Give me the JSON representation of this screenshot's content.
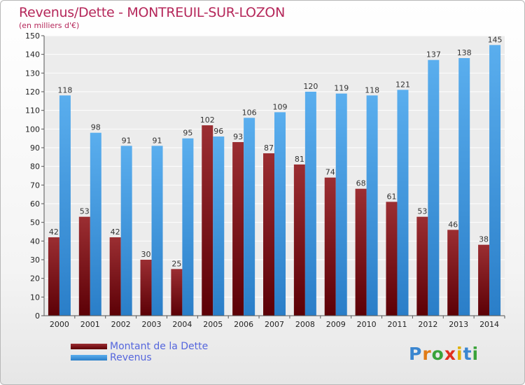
{
  "chart_data": {
    "type": "bar",
    "title": "Revenus/Dette - MONTREUIL-SUR-LOZON",
    "subtitle": "(en milliers d'€)",
    "categories": [
      "2000",
      "2001",
      "2002",
      "2003",
      "2004",
      "2005",
      "2006",
      "2007",
      "2008",
      "2009",
      "2010",
      "2011",
      "2012",
      "2013",
      "2014"
    ],
    "series": [
      {
        "name": "Montant de la Dette",
        "color": "#7a1a1c",
        "values": [
          42,
          53,
          42,
          30,
          25,
          102,
          93,
          87,
          81,
          74,
          68,
          61,
          53,
          46,
          38
        ]
      },
      {
        "name": "Revenus",
        "color": "#4da3e6",
        "values": [
          118,
          98,
          91,
          91,
          95,
          96,
          106,
          109,
          120,
          119,
          118,
          121,
          137,
          138,
          145
        ]
      }
    ],
    "ylim": [
      0,
      150
    ],
    "yticks": [
      0,
      10,
      20,
      30,
      40,
      50,
      60,
      70,
      80,
      90,
      100,
      110,
      120,
      130,
      140,
      150
    ],
    "grid": true,
    "legend": "bottom-left"
  },
  "logo": {
    "text": "Proxiti",
    "letters": [
      "P",
      "r",
      "o",
      "x",
      "i",
      "t",
      "i"
    ],
    "colors": [
      "#3a86d0",
      "#e07b16",
      "#3aa33a",
      "#e0301e",
      "#e0b000",
      "#3a86d0",
      "#3aa33a"
    ]
  }
}
